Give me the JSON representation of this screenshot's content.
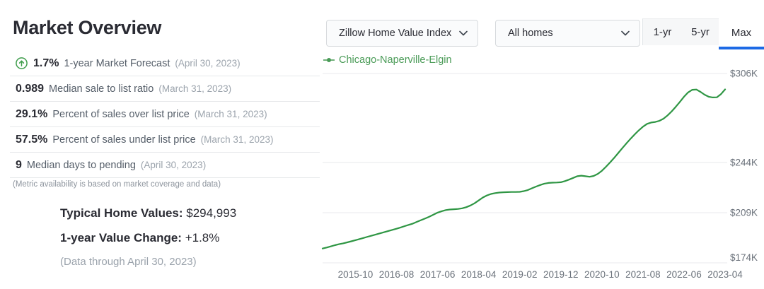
{
  "left_panel": {
    "title": "Market Overview",
    "metrics": [
      {
        "value": "1.7%",
        "label": "1-year Market Forecast",
        "date": "(April 30, 2023)"
      },
      {
        "value": "0.989",
        "label": "Median sale to list ratio",
        "date": "(March 31, 2023)"
      },
      {
        "value": "29.1%",
        "label": "Percent of sales over list price",
        "date": "(March 31, 2023)"
      },
      {
        "value": "57.5%",
        "label": "Percent of sales under list price",
        "date": "(March 31, 2023)"
      },
      {
        "value": "9",
        "label": "Median days to pending",
        "date": "(April 30, 2023)"
      }
    ],
    "note": "(Metric availability is based on market coverage and data)",
    "summary": {
      "home_value_label": "Typical Home Values:",
      "home_value": "$294,993",
      "change_label": "1-year Value Change:",
      "change_value": "+1.8%",
      "data_through": "(Data through April 30, 2023)"
    }
  },
  "controls": {
    "metric_dropdown": "Zillow Home Value Index",
    "home_type_dropdown": "All homes",
    "tabs": {
      "one_yr": "1-yr",
      "five_yr": "5-yr",
      "max": "Max",
      "active": "Max"
    }
  },
  "chart_data": {
    "type": "line",
    "title": "",
    "legend_label": "Chicago-Naperville-Elgin",
    "legend_position": "top-left",
    "grid": "horizontal-only",
    "line_color": "#2f9644",
    "legend_color": "#4a9b57",
    "accent_blue": "#1d6ae5",
    "unit": "USD thousands",
    "x_start_month": "2015-02",
    "x_interval": "monthly",
    "ylim": [
      174,
      306
    ],
    "y_ticks": [
      {
        "value": 306,
        "label": "$306K"
      },
      {
        "value": 244,
        "label": "$244K"
      },
      {
        "value": 209,
        "label": "$209K"
      },
      {
        "value": 174,
        "label": "$174K"
      }
    ],
    "x_ticks": [
      {
        "index": 8,
        "label": "2015-10"
      },
      {
        "index": 18,
        "label": "2016-08"
      },
      {
        "index": 28,
        "label": "2017-06"
      },
      {
        "index": 38,
        "label": "2018-04"
      },
      {
        "index": 48,
        "label": "2019-02"
      },
      {
        "index": 58,
        "label": "2019-12"
      },
      {
        "index": 68,
        "label": "2020-10"
      },
      {
        "index": 78,
        "label": "2021-08"
      },
      {
        "index": 88,
        "label": "2022-06"
      },
      {
        "index": 98,
        "label": "2023-04"
      }
    ],
    "series": [
      {
        "name": "Chicago-Naperville-Elgin",
        "values": [
          184.0,
          184.7,
          185.5,
          186.3,
          187.0,
          187.6,
          188.3,
          189.0,
          189.8,
          190.6,
          191.4,
          192.2,
          193.0,
          193.8,
          194.6,
          195.4,
          196.2,
          197.0,
          197.8,
          198.7,
          199.6,
          200.5,
          201.4,
          202.6,
          203.8,
          205.0,
          206.2,
          207.6,
          209.0,
          210.0,
          210.8,
          211.2,
          211.4,
          211.6,
          212.0,
          212.8,
          214.0,
          215.5,
          217.5,
          219.5,
          221.0,
          222.0,
          222.6,
          223.0,
          223.2,
          223.3,
          223.4,
          223.4,
          223.5,
          224.0,
          224.8,
          226.0,
          227.2,
          228.3,
          229.2,
          229.7,
          229.9,
          230.0,
          230.2,
          231.0,
          232.0,
          233.2,
          234.4,
          234.8,
          234.4,
          234.0,
          234.6,
          236.0,
          238.2,
          241.0,
          244.0,
          247.2,
          250.6,
          254.0,
          257.4,
          260.6,
          263.6,
          266.4,
          268.9,
          270.9,
          271.8,
          272.2,
          273.0,
          274.5,
          276.8,
          279.6,
          282.8,
          286.2,
          289.8,
          292.8,
          294.6,
          294.8,
          293.2,
          291.2,
          289.8,
          289.3,
          289.4,
          291.6,
          294.9
        ]
      }
    ]
  }
}
